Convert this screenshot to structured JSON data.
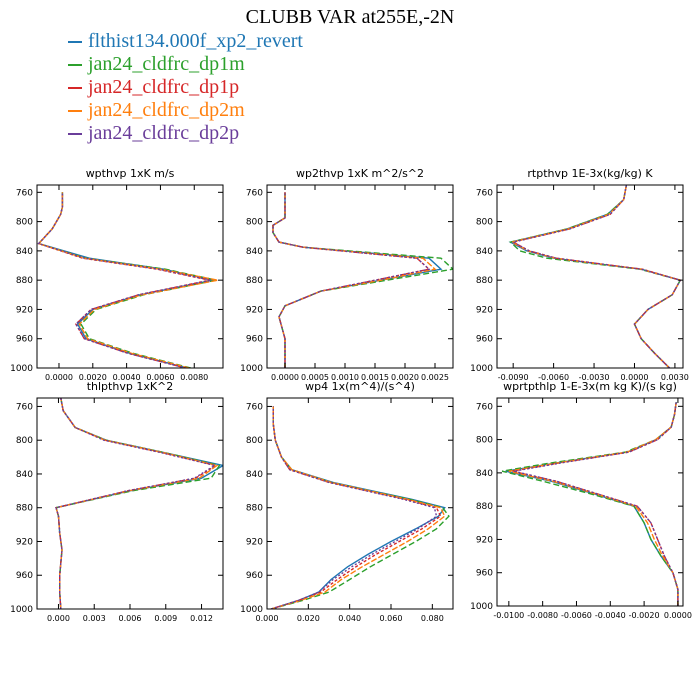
{
  "title": "CLUBB VAR at255E,-2N",
  "legend": [
    {
      "name": "flthist134.000f_xp2_revert",
      "color": "#1f77b4"
    },
    {
      "name": "jan24_cldfrc_dp1m",
      "color": "#2ca02c"
    },
    {
      "name": "jan24_cldfrc_dp1p",
      "color": "#d62728"
    },
    {
      "name": "jan24_cldfrc_dp2m",
      "color": "#ff7f0e"
    },
    {
      "name": "jan24_cldfrc_dp2p",
      "color": "#6a3d9a"
    }
  ],
  "chart_data": [
    {
      "type": "line",
      "title": "wpthvp  1xK m/s",
      "xlim": [
        -0.0013,
        0.0097
      ],
      "ylim": [
        1000,
        750
      ],
      "xticks": [
        0.0,
        0.002,
        0.004,
        0.006,
        0.008
      ],
      "xtick_labels": [
        "0.0000",
        "0.0020",
        "0.0040",
        "0.0060",
        "0.0080"
      ],
      "yticks": [
        760,
        800,
        840,
        880,
        920,
        960,
        1000
      ],
      "y": [
        1000,
        980,
        960,
        940,
        920,
        900,
        880,
        865,
        850,
        830,
        810,
        790,
        780,
        760
      ],
      "series": [
        {
          "values": [
            0.0076,
            0.0042,
            0.0016,
            0.0011,
            0.002,
            0.0048,
            0.0091,
            0.0062,
            0.0018,
            -0.0012,
            -0.0004,
            0.0001,
            0.0002,
            0.0002
          ]
        },
        {
          "values": [
            0.0078,
            0.0044,
            0.0018,
            0.0013,
            0.0022,
            0.005,
            0.0093,
            0.0063,
            0.0016,
            -0.0012,
            -0.0004,
            0.0001,
            0.0002,
            0.0002
          ]
        },
        {
          "values": [
            0.0075,
            0.0041,
            0.0015,
            0.001,
            0.0019,
            0.0047,
            0.0089,
            0.0058,
            0.0014,
            -0.0012,
            -0.0004,
            0.0001,
            0.0002,
            0.0002
          ]
        },
        {
          "values": [
            0.0077,
            0.0043,
            0.0017,
            0.0012,
            0.0021,
            0.0049,
            0.0094,
            0.006,
            0.0015,
            -0.0012,
            -0.0004,
            0.0001,
            0.0002,
            0.0002
          ]
        },
        {
          "values": [
            0.0075,
            0.0041,
            0.0015,
            0.001,
            0.0019,
            0.0047,
            0.009,
            0.0059,
            0.0015,
            -0.0012,
            -0.0004,
            0.0001,
            0.0002,
            0.0002
          ]
        }
      ]
    },
    {
      "type": "line",
      "title": "wp2thvp  1xK m^2/s^2",
      "xlim": [
        -0.0003,
        0.0028
      ],
      "ylim": [
        1000,
        750
      ],
      "xticks": [
        0.0,
        0.0005,
        0.001,
        0.0015,
        0.002,
        0.0025
      ],
      "xtick_labels": [
        "0.0000",
        "0.0005",
        "0.0010",
        "0.0015",
        "0.0020",
        "0.0025"
      ],
      "yticks": [
        760,
        800,
        840,
        880,
        920,
        960,
        1000
      ],
      "y": [
        1000,
        960,
        930,
        915,
        895,
        880,
        865,
        850,
        835,
        828,
        815,
        805,
        795,
        760
      ],
      "series": [
        {
          "values": [
            0.0,
            0.0,
            -0.0001,
            0.0,
            0.0006,
            0.0016,
            0.0026,
            0.0024,
            0.0003,
            -0.0001,
            -0.0002,
            -0.0002,
            0.0,
            0.0
          ]
        },
        {
          "values": [
            0.0,
            0.0,
            -0.0001,
            0.0,
            0.0006,
            0.0017,
            0.0028,
            0.0026,
            0.0003,
            -0.0001,
            -0.0002,
            -0.0002,
            0.0,
            0.0
          ]
        },
        {
          "values": [
            0.0,
            0.0,
            -0.0001,
            0.0,
            0.0006,
            0.0015,
            0.0024,
            0.0022,
            0.0003,
            -0.0001,
            -0.0002,
            -0.0002,
            0.0,
            0.0
          ]
        },
        {
          "values": [
            0.0,
            0.0,
            -0.0001,
            0.0,
            0.0006,
            0.0016,
            0.0025,
            0.0023,
            0.0003,
            -0.0001,
            -0.0002,
            -0.0002,
            0.0,
            0.0
          ]
        },
        {
          "values": [
            0.0,
            0.0,
            -0.0001,
            0.0,
            0.0006,
            0.0015,
            0.0024,
            0.0022,
            0.0003,
            -0.0001,
            -0.0002,
            -0.0002,
            0.0,
            0.0
          ]
        }
      ]
    },
    {
      "type": "line",
      "title": "rtpthvp  1E-3x(kg/kg) K",
      "xlim": [
        -0.0102,
        0.0036
      ],
      "ylim": [
        1000,
        750
      ],
      "xticks": [
        -0.009,
        -0.006,
        -0.003,
        0.0,
        0.003
      ],
      "xtick_labels": [
        "-0.0090",
        "-0.0060",
        "-0.0030",
        "0.0000",
        "0.0030"
      ],
      "yticks": [
        760,
        800,
        840,
        880,
        920,
        960,
        1000
      ],
      "y": [
        1000,
        980,
        960,
        940,
        920,
        900,
        880,
        865,
        850,
        840,
        828,
        810,
        790,
        770,
        750
      ],
      "series": [
        {
          "values": [
            0.0026,
            0.0015,
            0.0005,
            0.0,
            0.001,
            0.0028,
            0.0034,
            0.0005,
            -0.006,
            -0.008,
            -0.0092,
            -0.005,
            -0.002,
            -0.0008,
            -0.0006
          ]
        },
        {
          "values": [
            0.0026,
            0.0015,
            0.0005,
            0.0,
            0.001,
            0.0028,
            0.0034,
            0.0004,
            -0.0065,
            -0.0085,
            -0.0092,
            -0.005,
            -0.002,
            -0.0008,
            -0.0006
          ]
        },
        {
          "values": [
            0.0026,
            0.0015,
            0.0005,
            0.0,
            0.001,
            0.0028,
            0.0034,
            0.0006,
            -0.0058,
            -0.0078,
            -0.009,
            -0.0048,
            -0.0018,
            -0.0008,
            -0.0006
          ]
        },
        {
          "values": [
            0.0026,
            0.0015,
            0.0005,
            0.0,
            0.001,
            0.0028,
            0.0034,
            0.0005,
            -0.0059,
            -0.0079,
            -0.0091,
            -0.0049,
            -0.0019,
            -0.0008,
            -0.0006
          ]
        },
        {
          "values": [
            0.0026,
            0.0015,
            0.0005,
            0.0,
            0.001,
            0.0028,
            0.0034,
            0.0005,
            -0.0058,
            -0.0078,
            -0.009,
            -0.0048,
            -0.0018,
            -0.0008,
            -0.0006
          ]
        }
      ]
    },
    {
      "type": "line",
      "title": "thlpthvp  1xK^2",
      "xlim": [
        -0.0018,
        0.0138
      ],
      "ylim": [
        1000,
        750
      ],
      "xticks": [
        0.0,
        0.003,
        0.006,
        0.009,
        0.012
      ],
      "xtick_labels": [
        "0.000",
        "0.003",
        "0.006",
        "0.009",
        "0.012"
      ],
      "yticks": [
        760,
        800,
        840,
        880,
        920,
        960,
        1000
      ],
      "y": [
        1000,
        980,
        960,
        930,
        910,
        890,
        880,
        860,
        845,
        830,
        815,
        800,
        785,
        765,
        750
      ],
      "series": [
        {
          "values": [
            0.0002,
            0.0001,
            0.0001,
            0.0003,
            0.0001,
            0.0,
            -0.0002,
            0.006,
            0.012,
            0.0138,
            0.009,
            0.004,
            0.0014,
            0.0004,
            0.0002
          ]
        },
        {
          "values": [
            0.0002,
            0.0001,
            0.0001,
            0.0003,
            0.0001,
            0.0,
            -0.0002,
            0.0062,
            0.0128,
            0.0135,
            0.009,
            0.004,
            0.0014,
            0.0004,
            0.0002
          ]
        },
        {
          "values": [
            0.0002,
            0.0001,
            0.0001,
            0.0003,
            0.0001,
            0.0,
            -0.0002,
            0.0058,
            0.0115,
            0.0132,
            0.0088,
            0.0039,
            0.0014,
            0.0004,
            0.0002
          ]
        },
        {
          "values": [
            0.0002,
            0.0001,
            0.0001,
            0.0003,
            0.0001,
            0.0,
            -0.0002,
            0.0059,
            0.0118,
            0.0133,
            0.0089,
            0.0039,
            0.0014,
            0.0004,
            0.0002
          ]
        },
        {
          "values": [
            0.0002,
            0.0001,
            0.0001,
            0.0003,
            0.0001,
            0.0,
            -0.0002,
            0.0058,
            0.0114,
            0.0131,
            0.0087,
            0.0038,
            0.0014,
            0.0004,
            0.0002
          ]
        }
      ]
    },
    {
      "type": "line",
      "title": "wp4  1x(m^4)/(s^4)",
      "xlim": [
        0.0,
        0.09
      ],
      "ylim": [
        1000,
        750
      ],
      "xticks": [
        0.0,
        0.02,
        0.04,
        0.06,
        0.08
      ],
      "xtick_labels": [
        "0.000",
        "0.020",
        "0.040",
        "0.060",
        "0.080"
      ],
      "yticks": [
        760,
        800,
        840,
        880,
        920,
        960,
        1000
      ],
      "y": [
        1000,
        990,
        980,
        965,
        950,
        935,
        920,
        905,
        890,
        880,
        870,
        850,
        835,
        820,
        800,
        780,
        760
      ],
      "series": [
        {
          "values": [
            0.002,
            0.015,
            0.025,
            0.031,
            0.039,
            0.049,
            0.06,
            0.072,
            0.083,
            0.086,
            0.07,
            0.032,
            0.012,
            0.007,
            0.004,
            0.003,
            0.003
          ]
        },
        {
          "values": [
            0.002,
            0.017,
            0.03,
            0.04,
            0.05,
            0.061,
            0.072,
            0.082,
            0.088,
            0.085,
            0.069,
            0.031,
            0.012,
            0.007,
            0.004,
            0.003,
            0.003
          ]
        },
        {
          "values": [
            0.002,
            0.015,
            0.026,
            0.034,
            0.043,
            0.053,
            0.064,
            0.075,
            0.084,
            0.082,
            0.067,
            0.03,
            0.011,
            0.007,
            0.004,
            0.003,
            0.003
          ]
        },
        {
          "values": [
            0.002,
            0.016,
            0.028,
            0.036,
            0.046,
            0.057,
            0.068,
            0.078,
            0.086,
            0.084,
            0.068,
            0.031,
            0.012,
            0.007,
            0.004,
            0.003,
            0.003
          ]
        },
        {
          "values": [
            0.002,
            0.015,
            0.025,
            0.032,
            0.041,
            0.051,
            0.062,
            0.073,
            0.082,
            0.081,
            0.066,
            0.03,
            0.011,
            0.007,
            0.004,
            0.003,
            0.003
          ]
        }
      ]
    },
    {
      "type": "line",
      "title": "wprtpthlp  1-E-3x(m kg K)/(s kg)",
      "xlim": [
        -0.0107,
        0.0003
      ],
      "ylim": [
        1000,
        750
      ],
      "xticks": [
        -0.01,
        -0.008,
        -0.006,
        -0.004,
        -0.002,
        0.0
      ],
      "xtick_labels": [
        "-0.0100",
        "-0.0080",
        "-0.0060",
        "-0.0040",
        "-0.0020",
        "0.0000"
      ],
      "yticks": [
        760,
        800,
        840,
        880,
        920,
        960,
        1000
      ],
      "y": [
        1000,
        980,
        960,
        940,
        920,
        900,
        880,
        865,
        850,
        838,
        828,
        815,
        800,
        785,
        770,
        755
      ],
      "series": [
        {
          "values": [
            0.0,
            0.0,
            -0.0003,
            -0.001,
            -0.0016,
            -0.002,
            -0.0026,
            -0.005,
            -0.0075,
            -0.0102,
            -0.0072,
            -0.003,
            -0.0013,
            -0.0004,
            -0.0002,
            -0.0001
          ]
        },
        {
          "values": [
            0.0,
            0.0,
            -0.0003,
            -0.001,
            -0.0016,
            -0.002,
            -0.0026,
            -0.0052,
            -0.008,
            -0.0104,
            -0.0075,
            -0.0031,
            -0.0013,
            -0.0004,
            -0.0002,
            -0.0001
          ]
        },
        {
          "values": [
            0.0,
            0.0,
            -0.0003,
            -0.0008,
            -0.0012,
            -0.0016,
            -0.0024,
            -0.0048,
            -0.0072,
            -0.0098,
            -0.007,
            -0.0029,
            -0.0012,
            -0.0004,
            -0.0002,
            -0.0001
          ]
        },
        {
          "values": [
            0.0,
            0.0,
            -0.0003,
            -0.0009,
            -0.0014,
            -0.0018,
            -0.0025,
            -0.0049,
            -0.0074,
            -0.01,
            -0.0071,
            -0.003,
            -0.0013,
            -0.0004,
            -0.0002,
            -0.0001
          ]
        },
        {
          "values": [
            0.0,
            0.0,
            -0.0003,
            -0.0008,
            -0.0012,
            -0.0016,
            -0.0024,
            -0.0048,
            -0.0072,
            -0.0097,
            -0.0069,
            -0.0029,
            -0.0012,
            -0.0004,
            -0.0002,
            -0.0001
          ]
        }
      ]
    }
  ]
}
